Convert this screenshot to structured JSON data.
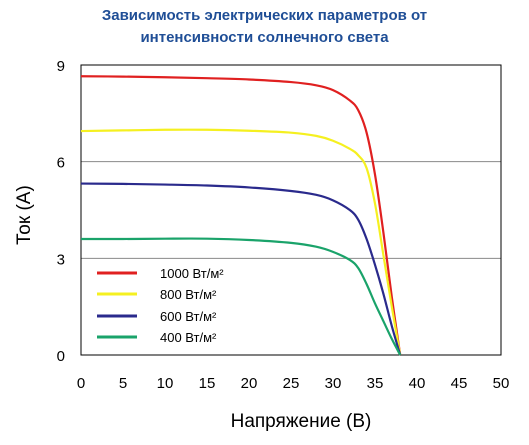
{
  "chart_data": {
    "type": "line",
    "title_line1": "Зависимость электрических параметров от",
    "title_line2": "интенсивности солнечного света",
    "xlabel": "Напряжение (В)",
    "ylabel": "Ток (А)",
    "xlim": [
      0,
      50
    ],
    "ylim": [
      0,
      9
    ],
    "x_ticks": [
      "0",
      "5",
      "10",
      "15",
      "20",
      "25",
      "30",
      "35",
      "40",
      "45",
      "50"
    ],
    "y_ticks": [
      "0",
      "3",
      "6",
      "9"
    ],
    "grid": "horizontal",
    "legend_position": "bottom-left",
    "series": [
      {
        "name": "1000 Вт/м²",
        "color": "#e02020",
        "points": [
          [
            0,
            8.65
          ],
          [
            5,
            8.64
          ],
          [
            10,
            8.62
          ],
          [
            15,
            8.59
          ],
          [
            20,
            8.55
          ],
          [
            25,
            8.47
          ],
          [
            28,
            8.37
          ],
          [
            30,
            8.22
          ],
          [
            32,
            7.9
          ],
          [
            33,
            7.6
          ],
          [
            34,
            6.9
          ],
          [
            35,
            5.6
          ],
          [
            36,
            3.8
          ],
          [
            37,
            1.8
          ],
          [
            38,
            0.0
          ]
        ]
      },
      {
        "name": "800 Вт/м²",
        "color": "#f5f020",
        "points": [
          [
            0,
            6.95
          ],
          [
            5,
            6.97
          ],
          [
            10,
            6.99
          ],
          [
            15,
            6.99
          ],
          [
            20,
            6.96
          ],
          [
            25,
            6.9
          ],
          [
            28,
            6.8
          ],
          [
            30,
            6.65
          ],
          [
            32,
            6.4
          ],
          [
            33,
            6.2
          ],
          [
            34,
            5.8
          ],
          [
            35,
            4.7
          ],
          [
            36,
            3.1
          ],
          [
            37,
            1.5
          ],
          [
            38,
            0.0
          ]
        ]
      },
      {
        "name": "600 Вт/м²",
        "color": "#2a2a8c",
        "points": [
          [
            0,
            5.32
          ],
          [
            5,
            5.31
          ],
          [
            10,
            5.29
          ],
          [
            15,
            5.26
          ],
          [
            20,
            5.2
          ],
          [
            25,
            5.09
          ],
          [
            28,
            4.97
          ],
          [
            30,
            4.8
          ],
          [
            32,
            4.5
          ],
          [
            33,
            4.2
          ],
          [
            34,
            3.6
          ],
          [
            35,
            2.8
          ],
          [
            36,
            1.9
          ],
          [
            37,
            0.9
          ],
          [
            38,
            0.0
          ]
        ]
      },
      {
        "name": "400 Вт/м²",
        "color": "#1aa36a",
        "points": [
          [
            0,
            3.6
          ],
          [
            5,
            3.6
          ],
          [
            10,
            3.61
          ],
          [
            15,
            3.61
          ],
          [
            20,
            3.57
          ],
          [
            25,
            3.48
          ],
          [
            28,
            3.36
          ],
          [
            30,
            3.2
          ],
          [
            32,
            2.95
          ],
          [
            33,
            2.7
          ],
          [
            34,
            2.2
          ],
          [
            35,
            1.6
          ],
          [
            36,
            1.05
          ],
          [
            37,
            0.5
          ],
          [
            38,
            0.0
          ]
        ]
      }
    ]
  }
}
